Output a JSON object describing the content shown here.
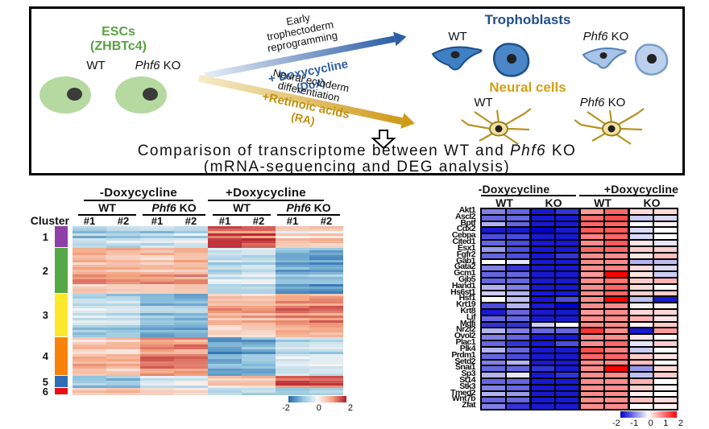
{
  "colors": {
    "esc_green": "#58a33e",
    "dox_blue": "#2d5fa6",
    "troph_blue": "#1f4e8c",
    "ra_gold": "#bf9010",
    "neural_gold": "#d4a017"
  },
  "top_panel": {
    "esc": {
      "title1": "ESCs",
      "title2": "(ZHBTc4)",
      "wt": "WT",
      "ko_gene": "Phf6",
      "ko_suffix": " KO"
    },
    "dox_path": {
      "line1": "Early",
      "line2": "trophectoderm",
      "line3": "reprogramming",
      "treatment": "+ Doxycycline",
      "treatment_sub": "(Dox)"
    },
    "ra_path": {
      "line1": "Neural ectoderm",
      "line2": "differentiation",
      "treatment": "+Retinoic acids",
      "treatment_sub": "(RA)"
    },
    "trophoblasts": {
      "title": "Trophoblasts",
      "wt": "WT",
      "ko_gene": "Phf6",
      "ko_suffix": " KO"
    },
    "neural": {
      "title": "Neural cells",
      "wt": "WT",
      "ko_gene": "Phf6",
      "ko_suffix": " KO"
    },
    "summary_pre": "Comparison of transcriptome between WT and ",
    "summary_gene": "Phf6",
    "summary_post": " KO",
    "summary_line2": "(mRNA-sequencing and DEG analysis)"
  },
  "chart_data": [
    {
      "type": "heatmap",
      "name": "clustered-deg-heatmap",
      "condition_labels": [
        "-Doxycycline",
        "+Doxycycline"
      ],
      "genotype_groups": [
        {
          "gene": "",
          "rest": "WT"
        },
        {
          "gene": "Phf6",
          "rest": " KO"
        },
        {
          "gene": "",
          "rest": "WT"
        },
        {
          "gene": "Phf6",
          "rest": " KO"
        }
      ],
      "replicate_labels": [
        "#1",
        "#2",
        "#1",
        "#2",
        "#1",
        "#2",
        "#1",
        "#2"
      ],
      "cluster_axis_label": "Cluster",
      "clusters": [
        {
          "id": "1",
          "color": "#8e3fa8",
          "rows": 9,
          "means": [
            -0.7,
            -0.7,
            -0.55,
            -0.5,
            1.6,
            1.5,
            0.45,
            0.5
          ]
        },
        {
          "id": "2",
          "color": "#54a845",
          "rows": 19,
          "means": [
            0.9,
            0.85,
            0.8,
            0.85,
            -0.45,
            -0.4,
            -1.15,
            -1.2
          ]
        },
        {
          "id": "3",
          "color": "#fce92c",
          "rows": 18,
          "means": [
            -0.6,
            -0.6,
            -1.0,
            -1.05,
            0.7,
            0.7,
            1.0,
            1.1
          ]
        },
        {
          "id": "4",
          "color": "#f8820a",
          "rows": 16,
          "means": [
            0.65,
            0.6,
            1.2,
            1.15,
            -1.4,
            -1.2,
            -0.45,
            -0.4
          ]
        },
        {
          "id": "5",
          "color": "#2f6eb5",
          "rows": 5,
          "means": [
            -0.9,
            -0.85,
            -0.35,
            -0.3,
            0.6,
            0.65,
            1.5,
            1.5
          ]
        },
        {
          "id": "6",
          "color": "#e51212",
          "rows": 3,
          "means": [
            0.85,
            0.8,
            0.5,
            0.55,
            -0.5,
            -0.45,
            -0.7,
            -0.6
          ]
        }
      ],
      "noise": {
        "seed": 42,
        "row": 0.9,
        "cell": 0.45
      },
      "color_stops": [
        [
          -2,
          "#2166ac"
        ],
        [
          -1,
          "#92c5de"
        ],
        [
          0,
          "#f7f7f7"
        ],
        [
          1,
          "#f4a582"
        ],
        [
          2,
          "#b2182b"
        ]
      ],
      "colorbar_ticks": [
        "-2",
        "0",
        "2"
      ],
      "value_range": [
        -2,
        2
      ]
    },
    {
      "type": "heatmap",
      "name": "trophoblast-gene-heatmap",
      "condition_labels": [
        "-Doxycycline",
        "+Doxycycline"
      ],
      "genotype_labels": [
        "WT",
        "KO",
        "WT",
        "KO"
      ],
      "color_stops": [
        [
          -2,
          "#0000cd"
        ],
        [
          0,
          "#ffffff"
        ],
        [
          2,
          "#ff0000"
        ]
      ],
      "colorbar_ticks": [
        "-2",
        "-1",
        "0",
        "1",
        "2"
      ],
      "value_range": [
        -2,
        2
      ],
      "genes": [
        {
          "name": "Akt1",
          "values": [
            -1.0,
            -1.2,
            -1.8,
            -1.6,
            0.8,
            1.2,
            0.3,
            0.3
          ]
        },
        {
          "name": "Ascl2",
          "values": [
            -1.2,
            -1.2,
            -1.8,
            -1.8,
            1.2,
            1.4,
            -0.4,
            -0.3
          ]
        },
        {
          "name": "Bptf",
          "values": [
            -0.6,
            -1.2,
            -1.8,
            -1.8,
            1.2,
            1.2,
            0.0,
            0.1
          ]
        },
        {
          "name": "Cdx2",
          "values": [
            -1.8,
            -1.8,
            -2.0,
            -1.8,
            1.3,
            1.3,
            -0.3,
            0.0
          ]
        },
        {
          "name": "Cebpa",
          "values": [
            -1.4,
            -1.4,
            -1.8,
            -1.8,
            1.0,
            1.2,
            -0.3,
            0.0
          ]
        },
        {
          "name": "Cited1",
          "values": [
            -1.2,
            -1.4,
            -1.8,
            -1.8,
            0.9,
            1.3,
            0.2,
            -0.2
          ]
        },
        {
          "name": "Esx1",
          "values": [
            -0.8,
            -1.4,
            -1.8,
            -1.8,
            1.2,
            1.2,
            0.4,
            0.4
          ]
        },
        {
          "name": "Fgfr2",
          "values": [
            -1.2,
            -1.4,
            -1.8,
            -1.6,
            0.9,
            0.9,
            0.2,
            0.5
          ]
        },
        {
          "name": "Gab1",
          "values": [
            0.0,
            -0.2,
            -1.8,
            -1.8,
            0.9,
            0.9,
            -0.6,
            -0.5
          ]
        },
        {
          "name": "Gata2",
          "values": [
            -1.0,
            -1.6,
            -1.8,
            -1.8,
            0.9,
            1.0,
            0.3,
            -0.3
          ]
        },
        {
          "name": "Gcm1",
          "values": [
            -1.2,
            -1.2,
            -1.8,
            -1.8,
            0.8,
            2.0,
            0.2,
            -0.4
          ]
        },
        {
          "name": "Gjb5",
          "values": [
            -1.2,
            -1.2,
            -1.8,
            -1.8,
            0.9,
            1.1,
            0.4,
            0.6
          ]
        },
        {
          "name": "Hand1",
          "values": [
            -0.6,
            -1.0,
            -1.8,
            -1.8,
            0.9,
            1.2,
            0.3,
            0.0
          ]
        },
        {
          "name": "Hs6st1",
          "values": [
            -0.4,
            -0.6,
            -1.8,
            -1.8,
            0.9,
            1.2,
            0.4,
            0.4
          ]
        },
        {
          "name": "Hsf1",
          "values": [
            0.05,
            -0.5,
            -1.8,
            -1.4,
            0.9,
            2.0,
            -0.5,
            -1.8
          ]
        },
        {
          "name": "Krt19",
          "values": [
            -1.4,
            -0.6,
            -1.8,
            -2.0,
            0.9,
            0.9,
            0.1,
            0.1
          ]
        },
        {
          "name": "Krt8",
          "values": [
            -1.8,
            -1.2,
            -1.8,
            -1.8,
            0.8,
            0.9,
            0.3,
            0.3
          ]
        },
        {
          "name": "Lif",
          "values": [
            -1.2,
            -1.2,
            -1.8,
            -1.8,
            0.9,
            0.9,
            0.6,
            0.2
          ]
        },
        {
          "name": "Mdfi",
          "values": [
            -1.6,
            -1.6,
            -0.4,
            0.0,
            0.9,
            0.9,
            0.1,
            0.4
          ]
        },
        {
          "name": "Nr2f2",
          "values": [
            -0.6,
            -1.0,
            -1.2,
            -1.2,
            1.6,
            0.9,
            -1.8,
            0.8
          ]
        },
        {
          "name": "Ovol2",
          "values": [
            -1.0,
            -1.2,
            -1.8,
            -1.8,
            0.9,
            0.9,
            0.2,
            0.0
          ]
        },
        {
          "name": "Plac1",
          "values": [
            -1.2,
            -1.6,
            -1.8,
            -1.4,
            0.9,
            1.2,
            -0.2,
            0.4
          ]
        },
        {
          "name": "Plk4",
          "values": [
            -0.6,
            -1.2,
            -1.8,
            -1.8,
            1.4,
            1.0,
            -0.4,
            0.0
          ]
        },
        {
          "name": "Prdm1",
          "values": [
            -1.2,
            -1.4,
            -1.8,
            -1.8,
            1.2,
            1.2,
            0.4,
            0.2
          ]
        },
        {
          "name": "Setd2",
          "values": [
            -1.0,
            -0.6,
            -1.8,
            -1.8,
            0.9,
            0.9,
            0.5,
            0.0
          ]
        },
        {
          "name": "Snai1",
          "values": [
            -1.2,
            -1.2,
            -1.6,
            -1.8,
            0.9,
            2.0,
            -0.8,
            0.3
          ]
        },
        {
          "name": "Sp3",
          "values": [
            -0.6,
            -0.2,
            -1.8,
            -1.6,
            0.9,
            0.9,
            -0.5,
            0.4
          ]
        },
        {
          "name": "St14",
          "values": [
            -1.2,
            -1.2,
            -1.8,
            -1.8,
            0.9,
            0.9,
            0.6,
            0.0
          ]
        },
        {
          "name": "Stk3",
          "values": [
            -1.0,
            -1.2,
            -1.8,
            -1.8,
            0.9,
            0.9,
            0.4,
            0.1
          ]
        },
        {
          "name": "Tmed2",
          "values": [
            -0.6,
            -0.8,
            -1.8,
            -1.8,
            0.9,
            0.9,
            0.1,
            0.0
          ]
        },
        {
          "name": "Wnt7b",
          "values": [
            -1.2,
            -1.2,
            -1.8,
            -1.8,
            0.9,
            0.9,
            0.5,
            0.3
          ]
        },
        {
          "name": "Zfat",
          "values": [
            -1.0,
            -1.6,
            -1.8,
            -1.8,
            0.9,
            0.9,
            0.0,
            0.1
          ]
        }
      ]
    }
  ]
}
